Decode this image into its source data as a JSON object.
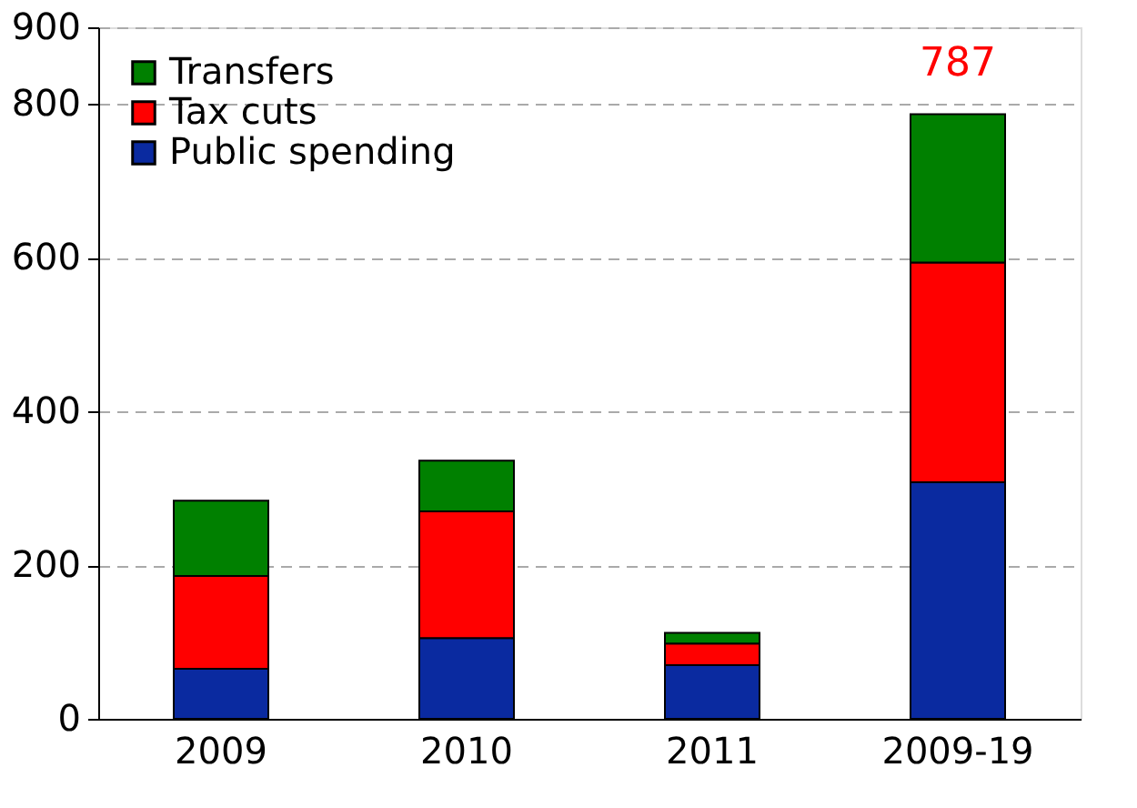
{
  "chart_data": {
    "type": "bar",
    "stacked": true,
    "categories": [
      "2009",
      "2010",
      "2011",
      "2009-19"
    ],
    "series": [
      {
        "name": "Public spending",
        "color": "#0a2aa0",
        "values": [
          65,
          105,
          70,
          308
        ]
      },
      {
        "name": "Tax cuts",
        "color": "#ff0000",
        "values": [
          121,
          165,
          28,
          286
        ]
      },
      {
        "name": "Transfers",
        "color": "#008000",
        "values": [
          98,
          66,
          14,
          193
        ]
      }
    ],
    "ylim": [
      0,
      900
    ],
    "yticks": [
      0,
      200,
      400,
      600,
      800,
      900
    ],
    "grid": "y",
    "legend": "top left",
    "annotations": [
      {
        "text": "787",
        "x": "2009-19",
        "y": 787
      }
    ]
  }
}
